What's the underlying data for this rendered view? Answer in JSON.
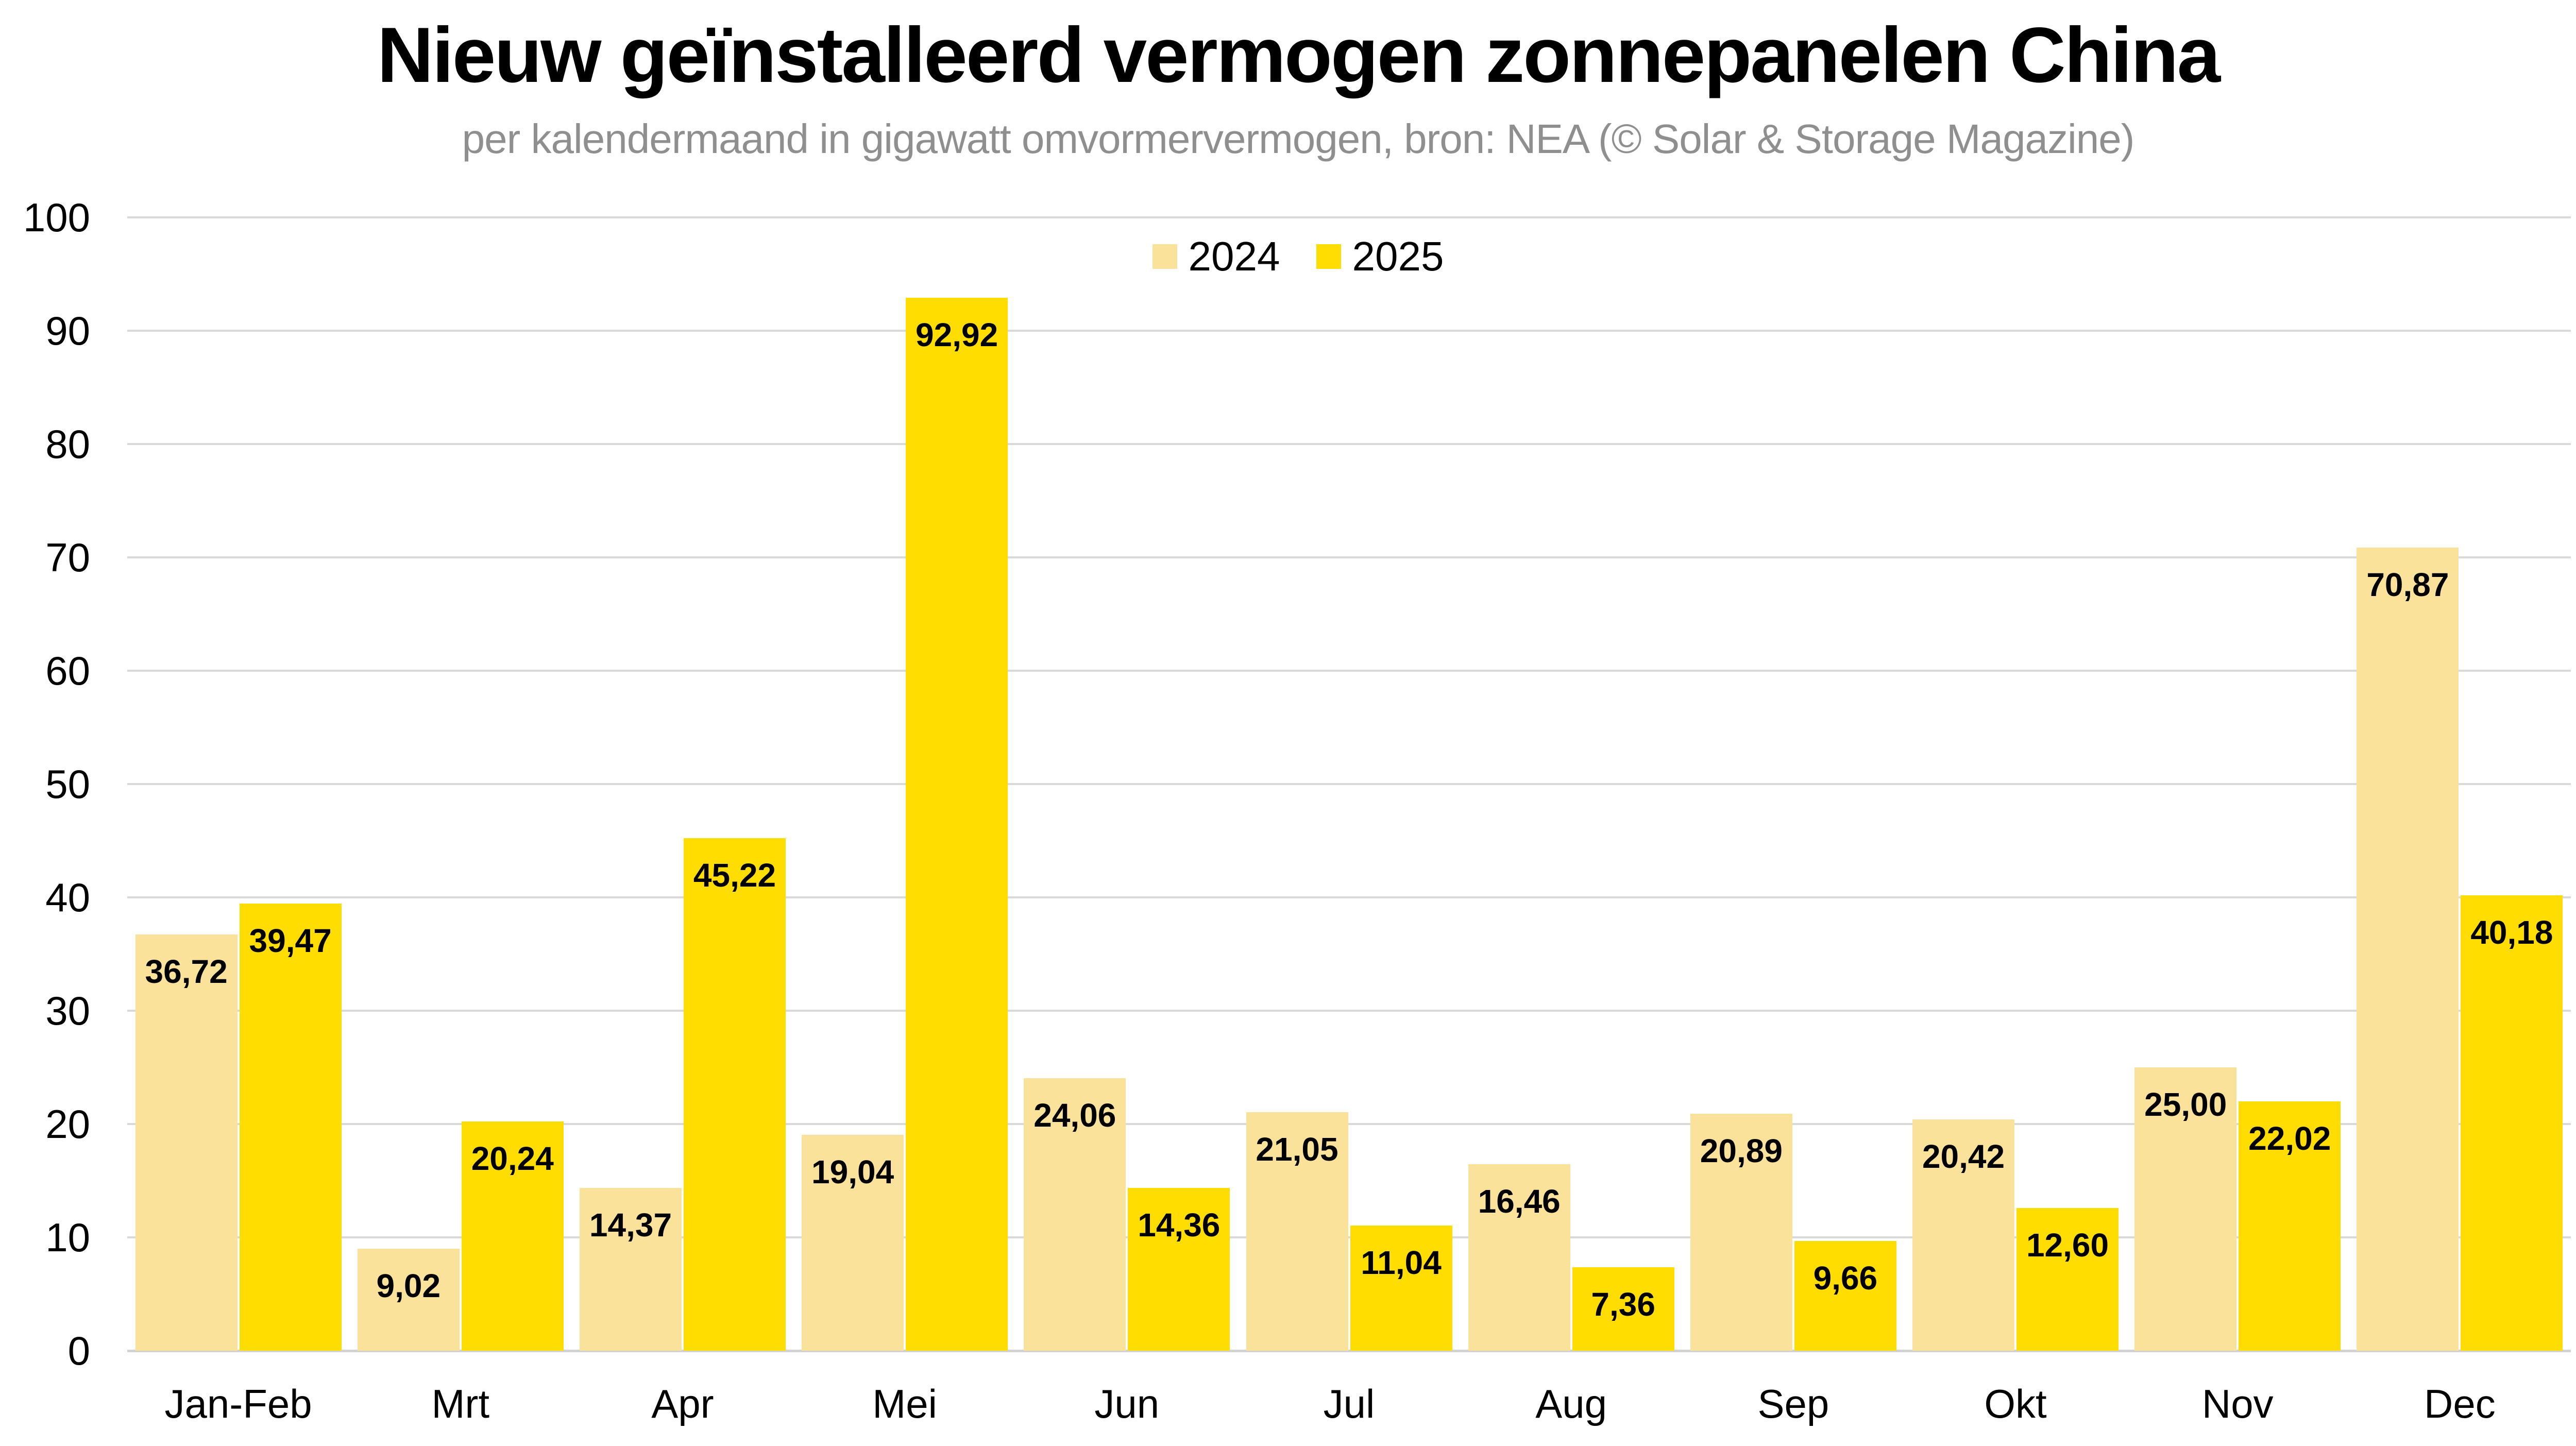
{
  "title": "Nieuw geïnstalleerd vermogen zonnepanelen China",
  "subtitle": "per kalendermaand in gigawatt omvormervermogen, bron: NEA (© Solar & Storage Magazine)",
  "colors": {
    "background": "#FFFFFF",
    "series_2024": "#FBE29A",
    "series_2025": "#FFDD00",
    "subtitle_text": "#8F8F8F",
    "gridline": "#D9D9D9",
    "axis_baseline": "#D2D2D2",
    "text": "#000000"
  },
  "legend": {
    "items": [
      {
        "label": "2024",
        "color": "#FBE29A"
      },
      {
        "label": "2025",
        "color": "#FFDD00"
      }
    ]
  },
  "chart_data": {
    "type": "bar",
    "title": "Nieuw geïnstalleerd vermogen zonnepanelen China",
    "subtitle": "per kalendermaand in gigawatt omvormervermogen, bron: NEA (© Solar & Storage Magazine)",
    "categories": [
      "Jan-Feb",
      "Mrt",
      "Apr",
      "Mei",
      "Jun",
      "Jul",
      "Aug",
      "Sep",
      "Okt",
      "Nov",
      "Dec"
    ],
    "series": [
      {
        "name": "2024",
        "color": "#FBE29A",
        "values": [
          36.72,
          9.02,
          14.37,
          19.04,
          24.06,
          21.05,
          16.46,
          20.89,
          20.42,
          25.0,
          70.87
        ],
        "labels": [
          "36,72",
          "9,02",
          "14,37",
          "19,04",
          "24,06",
          "21,05",
          "16,46",
          "20,89",
          "20,42",
          "25,00",
          "70,87"
        ]
      },
      {
        "name": "2025",
        "color": "#FFDD00",
        "values": [
          39.47,
          20.24,
          45.22,
          92.92,
          14.36,
          11.04,
          7.36,
          9.66,
          12.6,
          22.02,
          40.18
        ],
        "labels": [
          "39,47",
          "20,24",
          "45,22",
          "92,92",
          "14,36",
          "11,04",
          "7,36",
          "9,66",
          "12,60",
          "22,02",
          "40,18"
        ]
      }
    ],
    "ylim": [
      0,
      100
    ],
    "yticks": [
      0,
      10,
      20,
      30,
      40,
      50,
      60,
      70,
      80,
      90,
      100
    ],
    "grid": true,
    "legend_position": "top-center",
    "value_labels_shown": true,
    "decimal_separator": ","
  }
}
